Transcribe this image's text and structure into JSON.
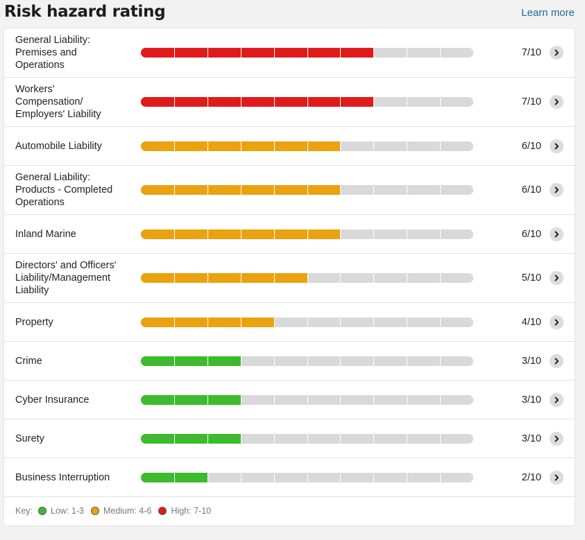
{
  "header": {
    "title": "Risk hazard rating",
    "learn_more": "Learn more"
  },
  "colors": {
    "high": "#e01b1b",
    "medium": "#eba20f",
    "low": "#3cbb2c",
    "track": "#d9d9d9"
  },
  "max_score": 10,
  "rows": [
    {
      "label": "General Liability: Premises and Operations",
      "lines": [
        "General Liability:",
        "Premises and",
        "Operations"
      ],
      "score": 7,
      "score_text": "7/10",
      "level": "high"
    },
    {
      "label": "Workers' Compensation/ Employers' Liability",
      "lines": [
        "Workers'",
        "Compensation/",
        "Employers' Liability"
      ],
      "score": 7,
      "score_text": "7/10",
      "level": "high"
    },
    {
      "label": "Automobile Liability",
      "lines": [
        "Automobile Liability"
      ],
      "score": 6,
      "score_text": "6/10",
      "level": "medium"
    },
    {
      "label": "General Liability: Products - Completed Operations",
      "lines": [
        "General Liability:",
        "Products - Completed",
        "Operations"
      ],
      "score": 6,
      "score_text": "6/10",
      "level": "medium"
    },
    {
      "label": "Inland Marine",
      "lines": [
        "Inland Marine"
      ],
      "score": 6,
      "score_text": "6/10",
      "level": "medium"
    },
    {
      "label": "Directors' and Officers' Liability/Management Liability",
      "lines": [
        "Directors' and Officers'",
        "Liability/Management",
        "Liability"
      ],
      "score": 5,
      "score_text": "5/10",
      "level": "medium"
    },
    {
      "label": "Property",
      "lines": [
        "Property"
      ],
      "score": 4,
      "score_text": "4/10",
      "level": "medium"
    },
    {
      "label": "Crime",
      "lines": [
        "Crime"
      ],
      "score": 3,
      "score_text": "3/10",
      "level": "low"
    },
    {
      "label": "Cyber Insurance",
      "lines": [
        "Cyber Insurance"
      ],
      "score": 3,
      "score_text": "3/10",
      "level": "low"
    },
    {
      "label": "Surety",
      "lines": [
        "Surety"
      ],
      "score": 3,
      "score_text": "3/10",
      "level": "low"
    },
    {
      "label": "Business Interruption",
      "lines": [
        "Business Interruption"
      ],
      "score": 2,
      "score_text": "2/10",
      "level": "low"
    }
  ],
  "key": {
    "label": "Key:",
    "low": "Low: 1-3",
    "medium": "Medium: 4-6",
    "high": "High: 7-10"
  }
}
